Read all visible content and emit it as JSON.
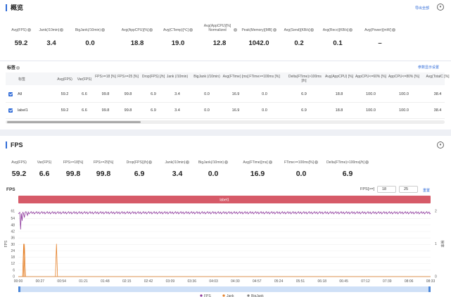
{
  "overview": {
    "title": "概览",
    "export_label": "导出全部",
    "metrics": [
      {
        "label": "Avg(FPS)",
        "value": "59.2"
      },
      {
        "label": "Jank(/10min)",
        "value": "3.4"
      },
      {
        "label": "BigJank(/10min)",
        "value": "0.0"
      },
      {
        "label": "Avg(AppCPU)[%]",
        "value": "18.8"
      },
      {
        "label": "Avg(CTemp)[℃]",
        "value": "19.0"
      },
      {
        "label": "Avg(AppCPU)[%] Normalized",
        "value": "12.8"
      },
      {
        "label": "Peak(Memory)[MB]",
        "value": "1042.0"
      },
      {
        "label": "Avg(Send)[KB/s]",
        "value": "0.2"
      },
      {
        "label": "Avg(Recv)[KB/s]",
        "value": "0.1"
      },
      {
        "label": "Avg(Power)[mW]",
        "value": "–"
      }
    ]
  },
  "tags": {
    "title": "标签",
    "settings_link": "参数显示设置",
    "headers": [
      "标签",
      "Avg(FPS)",
      "Var(FPS)",
      "FPS>=18 [%]",
      "FPS>=25 [%]",
      "Drop(FPS) [/h]",
      "Jank (/10min)",
      "BigJank (/10min)",
      "Avg(FTime) [ms]",
      "FTime>=100ms [%]",
      "Delta(FTime)>100ms [/h]",
      "Avg(AppCPU) [%]",
      "AppCPU<=60% [%]",
      "AppCPU<=80% [%]",
      "Avg(TotalC [%]"
    ],
    "rows": [
      {
        "cells": [
          "All",
          "59.2",
          "6.6",
          "99.8",
          "99.8",
          "6.9",
          "3.4",
          "0.0",
          "16.9",
          "0.0",
          "6.9",
          "18.8",
          "100.0",
          "100.0",
          "38.4"
        ]
      },
      {
        "cells": [
          "label1",
          "59.2",
          "6.6",
          "99.8",
          "99.8",
          "6.9",
          "3.4",
          "0.0",
          "16.9",
          "0.0",
          "6.9",
          "18.8",
          "100.0",
          "100.0",
          "38.4"
        ]
      }
    ]
  },
  "fps_section": {
    "title": "FPS",
    "metrics": [
      {
        "label": "Avg(FPS)",
        "value": "59.2"
      },
      {
        "label": "Var(FPS)",
        "value": "6.6"
      },
      {
        "label": "FPS>=18[%]",
        "value": "99.8"
      },
      {
        "label": "FPS>=25[%]",
        "value": "99.8"
      },
      {
        "label": "Drop(FPS)[/h]",
        "value": "6.9"
      },
      {
        "label": "Jank(/10min)",
        "value": "3.4"
      },
      {
        "label": "BigJank(/10min)",
        "value": "0.0"
      },
      {
        "label": "Avg(FTime)[ms]",
        "value": "16.9"
      },
      {
        "label": "FTime>=100ms[%]",
        "value": "0.0"
      },
      {
        "label": "Delta(FTime)>100ms[/h]",
        "value": "6.9"
      }
    ],
    "chart_title": "FPS",
    "threshold_label": "FPS[>=]",
    "threshold_1": "18",
    "threshold_2": "25",
    "reset_label": "重置"
  },
  "chart_data": {
    "type": "line",
    "label_band": "label1",
    "ylabel": "FPS",
    "ylabel_right": "帧率",
    "y_ticks": [
      0,
      6,
      12,
      18,
      24,
      30,
      36,
      42,
      48,
      54,
      61
    ],
    "y_right_ticks": [
      0,
      1,
      2
    ],
    "x_ticks": [
      "00:00",
      "00:27",
      "00:54",
      "01:21",
      "01:48",
      "02:15",
      "02:42",
      "03:09",
      "03:36",
      "04:03",
      "04:30",
      "04:57",
      "05:24",
      "05:51",
      "06:18",
      "06:45",
      "07:12",
      "07:39",
      "08:06",
      "08:33"
    ],
    "xlim": [
      0,
      540
    ],
    "ylim": [
      0,
      61
    ],
    "y_right_lim": [
      0,
      2
    ],
    "series": [
      {
        "name": "FPS",
        "color": "#8e3a9d",
        "base_value": 59.5,
        "dips": [
          [
            3,
            44
          ],
          [
            5,
            52
          ],
          [
            8,
            55
          ],
          [
            12,
            57
          ]
        ]
      },
      {
        "name": "Jank",
        "color": "#e5822b",
        "spikes": [
          [
            7,
            1
          ],
          [
            8,
            1
          ],
          [
            50,
            1
          ]
        ]
      },
      {
        "name": "BigJank",
        "color": "#7f7f7f",
        "spikes": []
      }
    ]
  }
}
